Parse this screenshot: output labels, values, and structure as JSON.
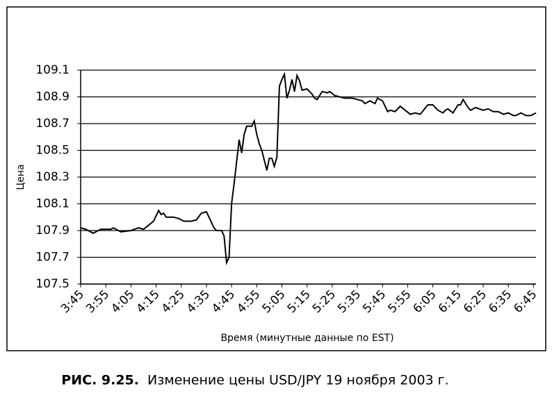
{
  "chart_data": {
    "type": "line",
    "y_label": "Цена",
    "x_label": "Время (минутные данные по EST)",
    "caption_label": "РИС. 9.25.",
    "caption": "Изменение цены USD/JPY 19 ноября 2003 г.",
    "color": "#000000",
    "grid": true,
    "x": [
      225,
      227,
      230,
      233,
      237,
      238,
      241,
      245,
      248,
      250,
      252,
      254,
      256,
      257,
      258,
      259,
      262,
      264,
      266,
      269,
      271,
      273,
      275,
      276,
      278,
      279,
      281,
      282,
      283,
      284,
      285,
      286,
      288,
      289,
      290,
      291,
      293,
      294,
      295,
      296,
      297,
      299,
      300,
      301,
      302,
      303,
      304,
      305,
      306,
      307,
      308,
      309,
      310,
      311,
      312,
      313,
      315,
      317,
      318,
      319,
      321,
      323,
      324,
      326,
      328,
      330,
      333,
      335,
      337,
      338,
      340,
      342,
      343,
      345,
      347,
      348,
      350,
      352,
      354,
      356,
      358,
      360,
      363,
      365,
      367,
      369,
      370,
      371,
      373,
      375,
      376,
      377,
      379,
      380,
      382,
      385,
      387,
      389,
      391,
      393,
      395,
      397,
      398,
      400,
      402,
      404,
      406
    ],
    "values": [
      107.92,
      107.91,
      107.88,
      107.91,
      107.91,
      107.92,
      107.89,
      107.9,
      107.92,
      107.91,
      107.94,
      107.97,
      108.05,
      108.02,
      108.03,
      108.0,
      108.0,
      107.99,
      107.97,
      107.97,
      107.98,
      108.03,
      108.04,
      108.0,
      107.92,
      107.9,
      107.9,
      107.86,
      107.66,
      107.7,
      108.1,
      108.25,
      108.58,
      108.48,
      108.62,
      108.68,
      108.68,
      108.72,
      108.62,
      108.55,
      108.5,
      108.35,
      108.44,
      108.44,
      108.38,
      108.45,
      108.98,
      109.03,
      109.07,
      108.89,
      108.95,
      109.03,
      108.94,
      109.06,
      109.02,
      108.95,
      108.96,
      108.92,
      108.89,
      108.88,
      108.94,
      108.93,
      108.94,
      108.91,
      108.9,
      108.89,
      108.89,
      108.88,
      108.87,
      108.85,
      108.87,
      108.85,
      108.89,
      108.87,
      108.79,
      108.8,
      108.79,
      108.83,
      108.8,
      108.77,
      108.78,
      108.77,
      108.84,
      108.84,
      108.8,
      108.78,
      108.8,
      108.81,
      108.78,
      108.84,
      108.84,
      108.88,
      108.82,
      108.8,
      108.82,
      108.8,
      108.81,
      108.79,
      108.79,
      108.77,
      108.78,
      108.76,
      108.76,
      108.78,
      108.76,
      108.76,
      108.78
    ],
    "xlim": [
      225,
      406
    ],
    "xticks": [
      {
        "value": 225,
        "label": "3:45"
      },
      {
        "value": 235,
        "label": "3:55"
      },
      {
        "value": 245,
        "label": "4:05"
      },
      {
        "value": 255,
        "label": "4:15"
      },
      {
        "value": 265,
        "label": "4:25"
      },
      {
        "value": 275,
        "label": "4:35"
      },
      {
        "value": 285,
        "label": "4:45"
      },
      {
        "value": 295,
        "label": "4:55"
      },
      {
        "value": 305,
        "label": "5:05"
      },
      {
        "value": 315,
        "label": "5:15"
      },
      {
        "value": 325,
        "label": "5:25"
      },
      {
        "value": 335,
        "label": "5:35"
      },
      {
        "value": 345,
        "label": "5:45"
      },
      {
        "value": 355,
        "label": "5:55"
      },
      {
        "value": 365,
        "label": "6:05"
      },
      {
        "value": 375,
        "label": "6:15"
      },
      {
        "value": 385,
        "label": "6:25"
      },
      {
        "value": 395,
        "label": "6:35"
      },
      {
        "value": 405,
        "label": "6:45"
      }
    ],
    "ylim": [
      107.5,
      109.1
    ],
    "yticks": [
      107.5,
      107.7,
      107.9,
      108.1,
      108.3,
      108.5,
      108.7,
      108.9,
      109.1
    ]
  }
}
